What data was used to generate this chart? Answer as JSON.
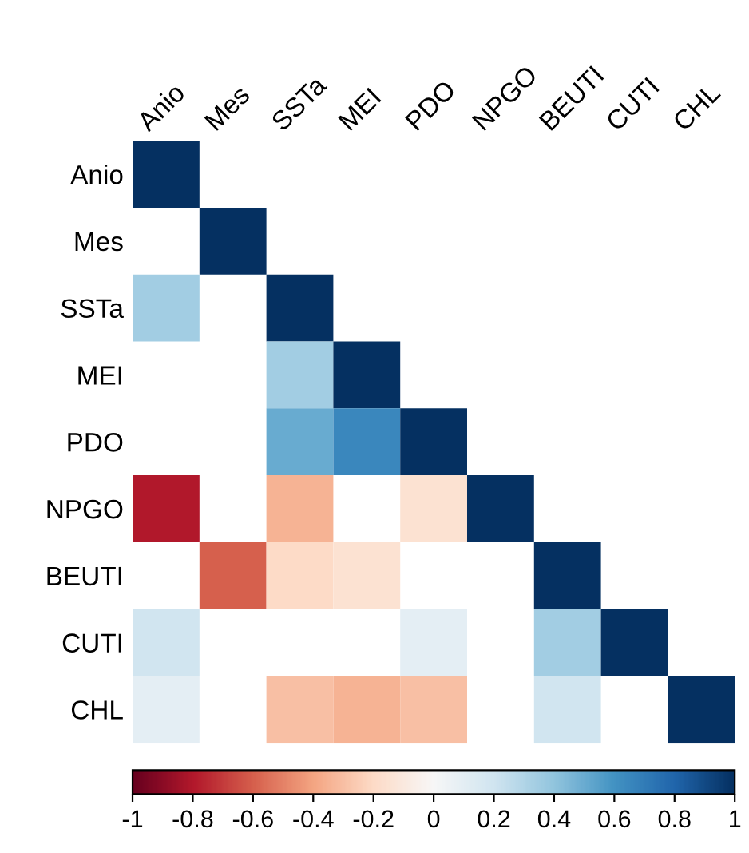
{
  "chart_data": {
    "type": "heatmap",
    "categories": [
      "Anio",
      "Mes",
      "SSTa",
      "MEI",
      "PDO",
      "NPGO",
      "BEUTI",
      "CUTI",
      "CHL"
    ],
    "y_categories": [
      "Anio",
      "Mes",
      "SSTa",
      "MEI",
      "PDO",
      "NPGO",
      "BEUTI",
      "CUTI",
      "CHL"
    ],
    "cells": [
      [
        1,
        null,
        null,
        null,
        null,
        null,
        null,
        null,
        null
      ],
      [
        null,
        1,
        null,
        null,
        null,
        null,
        null,
        null,
        null
      ],
      [
        0.35,
        null,
        1,
        null,
        null,
        null,
        null,
        null,
        null
      ],
      [
        null,
        null,
        0.35,
        1,
        null,
        null,
        null,
        null,
        null
      ],
      [
        null,
        null,
        0.5,
        0.65,
        1,
        null,
        null,
        null,
        null
      ],
      [
        -0.8,
        null,
        -0.35,
        null,
        -0.15,
        1,
        null,
        null,
        null
      ],
      [
        null,
        -0.6,
        -0.2,
        -0.15,
        null,
        null,
        1,
        null,
        null
      ],
      [
        0.2,
        null,
        null,
        null,
        0.1,
        null,
        0.35,
        1,
        null
      ],
      [
        0.1,
        null,
        -0.3,
        -0.35,
        -0.3,
        null,
        0.2,
        null,
        1
      ]
    ],
    "clim": [
      -1,
      1
    ],
    "cticks": [
      -1,
      -0.8,
      -0.6,
      -0.4,
      -0.2,
      0,
      0.2,
      0.4,
      0.6,
      0.8,
      1
    ]
  }
}
